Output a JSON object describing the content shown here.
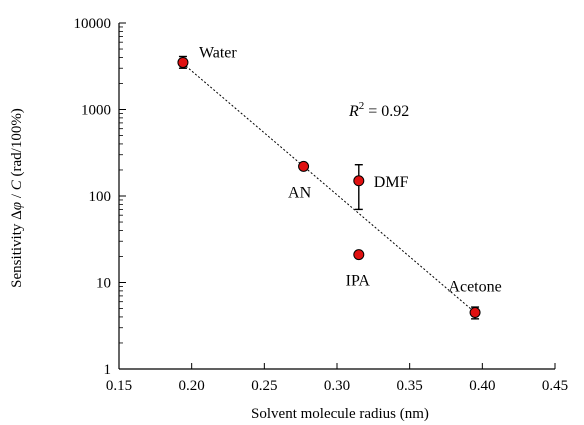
{
  "chart_data": {
    "type": "scatter",
    "title": "",
    "xlabel": "Solvent molecule radius (nm)",
    "ylabel": {
      "prefix": "Sensitivity Δ",
      "phi": "φ",
      "mid": " / ",
      "c": "C",
      "suffix": " (rad/100%)"
    },
    "xlim": [
      0.15,
      0.45
    ],
    "ylim": [
      1,
      10000
    ],
    "yscale": "log",
    "grid": false,
    "x_ticks": [
      "0.15",
      "0.20",
      "0.25",
      "0.30",
      "0.35",
      "0.40",
      "0.45"
    ],
    "x_tick_values": [
      0.15,
      0.2,
      0.25,
      0.3,
      0.35,
      0.4,
      0.45
    ],
    "y_ticks": [
      "1",
      "10",
      "100",
      "1000",
      "10000"
    ],
    "y_tick_values": [
      1,
      10,
      100,
      1000,
      10000
    ],
    "points": [
      {
        "label": "Water",
        "x": 0.194,
        "y": 3500,
        "err_low": 3000,
        "err_high": 4100
      },
      {
        "label": "AN",
        "x": 0.277,
        "y": 220,
        "err_low": 220,
        "err_high": 220
      },
      {
        "label": "DMF",
        "x": 0.315,
        "y": 150,
        "err_low": 70,
        "err_high": 230
      },
      {
        "label": "IPA",
        "x": 0.315,
        "y": 21,
        "err_low": 21,
        "err_high": 21
      },
      {
        "label": "Acetone",
        "x": 0.395,
        "y": 4.5,
        "err_low": 3.8,
        "err_high": 5.2
      }
    ],
    "fit_line": {
      "x": [
        0.194,
        0.395
      ],
      "y": [
        3400,
        4.5
      ]
    },
    "annotation": {
      "r": "R",
      "sup": "2",
      "eq": " = 0.92"
    },
    "colors": {
      "marker": "#e01010",
      "marker_edge": "#000000",
      "fit": "#000000"
    }
  }
}
